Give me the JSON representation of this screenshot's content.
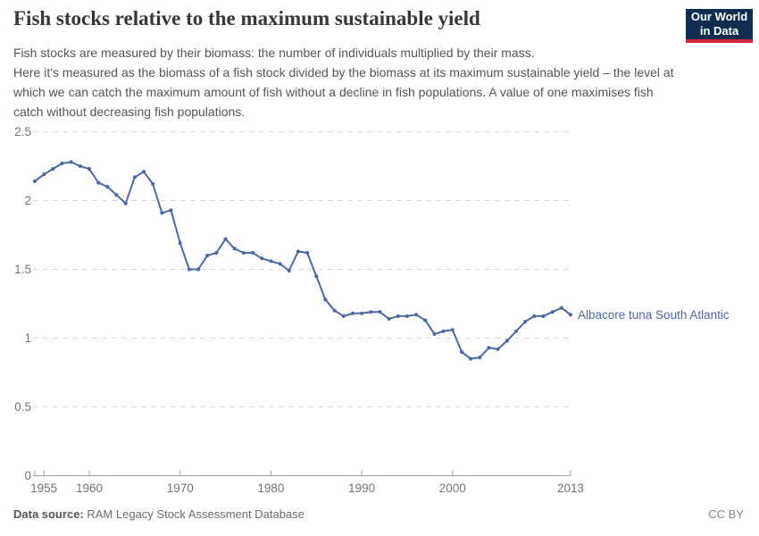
{
  "header": {
    "title": "Fish stocks relative to the maximum sustainable yield",
    "subtitle_line1": "Fish stocks are measured by their biomass: the number of individuals multiplied by their mass.",
    "subtitle_rest": "Here it's measured as the biomass of a fish stock divided by the biomass at its maximum sustainable yield – the level at which we can catch the maximum amount of fish without a decline in fish populations. A value of one maximises fish catch without decreasing fish populations.",
    "logo": {
      "line1": "Our World",
      "line2": "in Data"
    }
  },
  "chart_data": {
    "type": "line",
    "title": "Fish stocks relative to the maximum sustainable yield",
    "series": [
      {
        "name": "Albacore tuna South Atlantic",
        "x": [
          1954,
          1955,
          1956,
          1957,
          1958,
          1959,
          1960,
          1961,
          1962,
          1963,
          1964,
          1965,
          1966,
          1967,
          1968,
          1969,
          1970,
          1971,
          1972,
          1973,
          1974,
          1975,
          1976,
          1977,
          1978,
          1979,
          1980,
          1981,
          1982,
          1983,
          1984,
          1985,
          1986,
          1987,
          1988,
          1989,
          1990,
          1991,
          1992,
          1993,
          1994,
          1995,
          1996,
          1997,
          1998,
          1999,
          2000,
          2001,
          2002,
          2003,
          2004,
          2005,
          2006,
          2007,
          2008,
          2009,
          2010,
          2011,
          2012,
          2013
        ],
        "values": [
          2.14,
          2.19,
          2.23,
          2.27,
          2.28,
          2.25,
          2.23,
          2.13,
          2.1,
          2.04,
          1.98,
          2.17,
          2.21,
          2.12,
          1.91,
          1.93,
          1.69,
          1.5,
          1.5,
          1.6,
          1.62,
          1.72,
          1.65,
          1.62,
          1.62,
          1.58,
          1.56,
          1.54,
          1.49,
          1.63,
          1.62,
          1.45,
          1.28,
          1.2,
          1.16,
          1.18,
          1.18,
          1.19,
          1.19,
          1.14,
          1.16,
          1.16,
          1.17,
          1.13,
          1.03,
          1.05,
          1.06,
          0.9,
          0.85,
          0.86,
          0.93,
          0.92,
          0.98,
          1.05,
          1.12,
          1.16,
          1.16,
          1.19,
          1.22,
          1.17
        ]
      }
    ],
    "xlabel": "",
    "ylabel": "",
    "xlim": [
      1954,
      2013
    ],
    "ylim": [
      0,
      2.5
    ],
    "yticks": [
      0,
      0.5,
      1,
      1.5,
      2,
      2.5
    ],
    "xticks": [
      1955,
      1960,
      1970,
      1980,
      1990,
      2000,
      2013
    ],
    "grid": true,
    "grid_style": "dashed",
    "legend_position": "right-of-last-point",
    "line_color": "#4a69a5",
    "label_color": "#4a69a5",
    "grid_color": "#d9d9d9",
    "axis_color": "#a3a3a3",
    "tick_label_color": "#757575"
  },
  "footer": {
    "source_label": "Data source:",
    "source_value": "RAM Legacy Stock Assessment Database",
    "license": "CC BY"
  }
}
